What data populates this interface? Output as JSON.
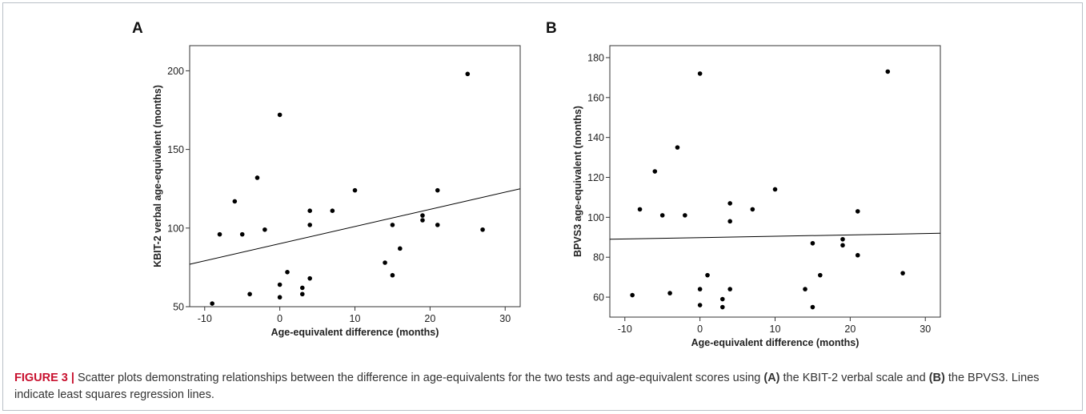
{
  "figure": {
    "caption": {
      "label": "FIGURE 3 |",
      "part1": " Scatter plots demonstrating relationships between the difference in age-equivalents for the two tests and age-equivalent scores using ",
      "markerA": "(A)",
      "part2": " the KBIT-2 verbal scale and ",
      "markerB": "(B)",
      "part3": " the BPVS3. Lines indicate least squares regression lines."
    }
  },
  "chart_data": [
    {
      "panel": "A",
      "type": "scatter",
      "xlabel": "Age-equivalent difference (months)",
      "ylabel": "KBIT-2 verbal age-equivalent (months)",
      "xlim": [
        -12,
        32
      ],
      "ylim": [
        50,
        216
      ],
      "xticks": [
        -10,
        0,
        10,
        20,
        30
      ],
      "yticks": [
        50,
        100,
        150,
        200
      ],
      "grid": false,
      "points": [
        [
          -9,
          52
        ],
        [
          -8,
          96
        ],
        [
          -6,
          117
        ],
        [
          -5,
          96
        ],
        [
          -4,
          58
        ],
        [
          -3,
          132
        ],
        [
          -2,
          99
        ],
        [
          0,
          172
        ],
        [
          0,
          64
        ],
        [
          0,
          56
        ],
        [
          1,
          72
        ],
        [
          3,
          62
        ],
        [
          3,
          58
        ],
        [
          4,
          111
        ],
        [
          4,
          102
        ],
        [
          4,
          68
        ],
        [
          7,
          111
        ],
        [
          10,
          124
        ],
        [
          14,
          78
        ],
        [
          15,
          102
        ],
        [
          15,
          70
        ],
        [
          16,
          87
        ],
        [
          19,
          108
        ],
        [
          19,
          105
        ],
        [
          21,
          124
        ],
        [
          21,
          102
        ],
        [
          25,
          198
        ],
        [
          27,
          99
        ]
      ],
      "regression": {
        "x": [
          -12,
          32
        ],
        "y": [
          77,
          125
        ]
      },
      "colors": {
        "points": "#000000",
        "line": "#000000"
      }
    },
    {
      "panel": "B",
      "type": "scatter",
      "xlabel": "Age-equivalent difference (months)",
      "ylabel": "BPVS3 age-equivalent (months)",
      "xlim": [
        -12,
        32
      ],
      "ylim": [
        50,
        186
      ],
      "xticks": [
        -10,
        0,
        10,
        20,
        30
      ],
      "yticks": [
        60,
        80,
        100,
        120,
        140,
        160,
        180
      ],
      "grid": false,
      "points": [
        [
          -9,
          61
        ],
        [
          -8,
          104
        ],
        [
          -6,
          123
        ],
        [
          -5,
          101
        ],
        [
          -4,
          62
        ],
        [
          -3,
          135
        ],
        [
          -2,
          101
        ],
        [
          0,
          172
        ],
        [
          0,
          64
        ],
        [
          0,
          56
        ],
        [
          1,
          71
        ],
        [
          3,
          59
        ],
        [
          3,
          55
        ],
        [
          4,
          107
        ],
        [
          4,
          98
        ],
        [
          4,
          64
        ],
        [
          7,
          104
        ],
        [
          10,
          114
        ],
        [
          14,
          64
        ],
        [
          15,
          87
        ],
        [
          15,
          55
        ],
        [
          16,
          71
        ],
        [
          19,
          89
        ],
        [
          19,
          86
        ],
        [
          21,
          103
        ],
        [
          21,
          81
        ],
        [
          25,
          173
        ],
        [
          27,
          72
        ]
      ],
      "regression": {
        "x": [
          -12,
          32
        ],
        "y": [
          89,
          92
        ]
      },
      "colors": {
        "points": "#000000",
        "line": "#000000"
      }
    }
  ]
}
